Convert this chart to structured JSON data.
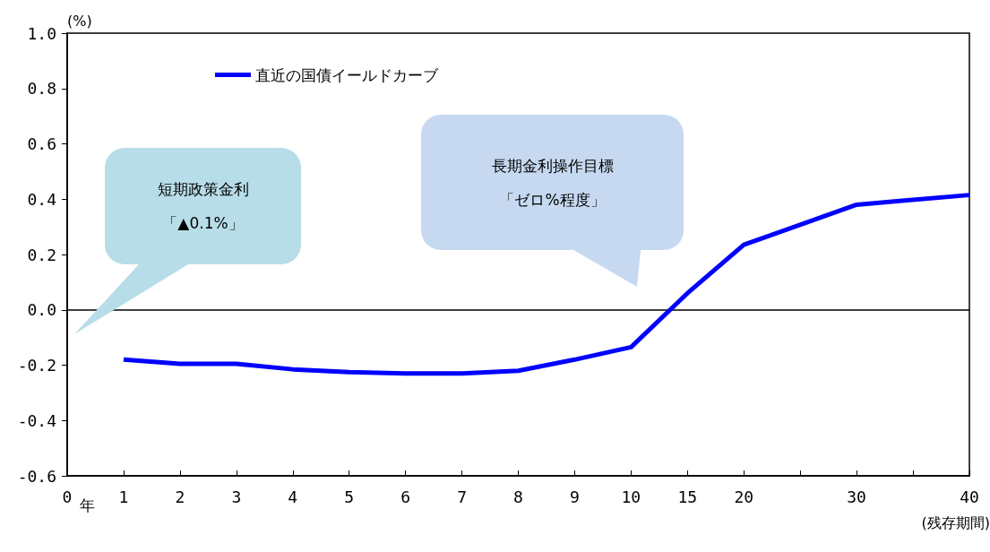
{
  "chart_data": {
    "type": "line",
    "categories": [
      "0",
      "1",
      "2",
      "3",
      "4",
      "5",
      "6",
      "7",
      "8",
      "9",
      "10",
      "15",
      "20",
      null,
      "30",
      null,
      "40"
    ],
    "series": [
      {
        "name": "直近の国債イールドカーブ",
        "color": "#0000ff",
        "values": [
          null,
          -0.18,
          -0.195,
          -0.195,
          -0.215,
          -0.225,
          -0.23,
          -0.23,
          -0.22,
          -0.18,
          -0.135,
          0.06,
          0.235,
          null,
          0.38,
          null,
          0.415
        ]
      }
    ],
    "ylim": [
      -0.6,
      1.0
    ],
    "yticks": [
      {
        "value": -0.6,
        "label": "-0.6"
      },
      {
        "value": -0.4,
        "label": "-0.4"
      },
      {
        "value": -0.2,
        "label": "-0.2"
      },
      {
        "value": 0,
        "label": "0.0"
      },
      {
        "value": 0.2,
        "label": "0.2"
      },
      {
        "value": 0.4,
        "label": "0.4"
      },
      {
        "value": 0.6,
        "label": "0.6"
      },
      {
        "value": 0.8,
        "label": "0.8"
      },
      {
        "value": 1.0,
        "label": "1.0"
      }
    ],
    "ylabel": "(%)",
    "xlabel": "(残存期間)",
    "ref_lines": [
      {
        "axis": "y",
        "value": 0,
        "color": "#000000"
      }
    ],
    "annotations": [
      "短期政策金利",
      "「▲0.1%」",
      "長期金利操作目標",
      "「ゼロ%程度」",
      "年"
    ],
    "legend": "top left",
    "grid": false,
    "marker": "none",
    "line_style": "solid"
  }
}
